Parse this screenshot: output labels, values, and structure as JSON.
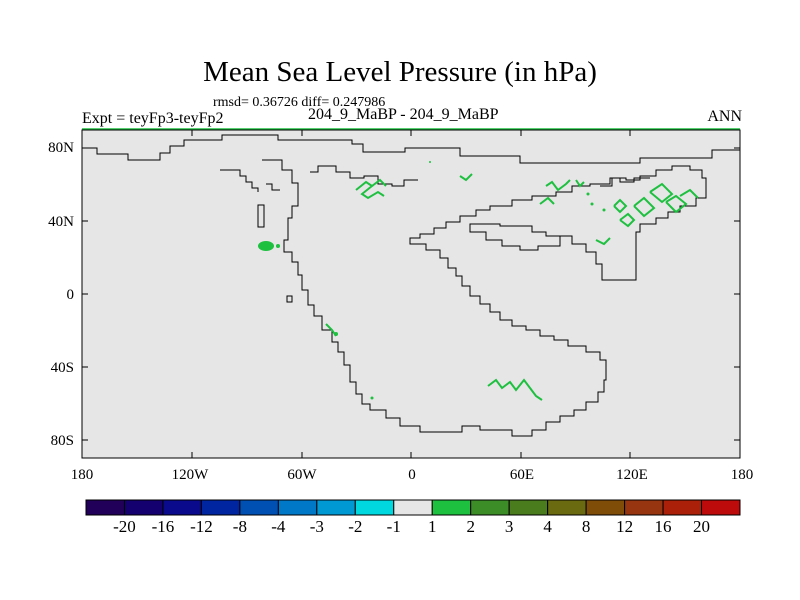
{
  "title": "Mean Sea Level Pressure (in hPa)",
  "stats": "rmsd= 0.36726 diff= 0.247986",
  "expt": "Expt = teyFp3-teyFp2",
  "cases": "204_9_MaBP - 204_9_MaBP",
  "season": "ANN",
  "lat_labels": [
    "80N",
    "40N",
    "0",
    "40S",
    "80S"
  ],
  "lon_labels": [
    "180",
    "120W",
    "60W",
    "0",
    "60E",
    "120E",
    "180"
  ],
  "colorbar": {
    "labels": [
      "-20",
      "-16",
      "-12",
      "-8",
      "-4",
      "-3",
      "-2",
      "-1",
      "1",
      "2",
      "3",
      "4",
      "8",
      "12",
      "16",
      "20"
    ],
    "colors": [
      "#200058",
      "#14006e",
      "#0a0a8c",
      "#0025a0",
      "#0050b4",
      "#0078c8",
      "#0099d4",
      "#00d8e0",
      "#e6e6e6",
      "#1ec040",
      "#3c8c28",
      "#4a7b1c",
      "#6a6a10",
      "#7f4d08",
      "#963510",
      "#aa2008",
      "#bd0a0a"
    ]
  },
  "map": {
    "background_color": "#e6e6e6",
    "coast_color": "#000000",
    "contour_color": "#1ec040"
  }
}
